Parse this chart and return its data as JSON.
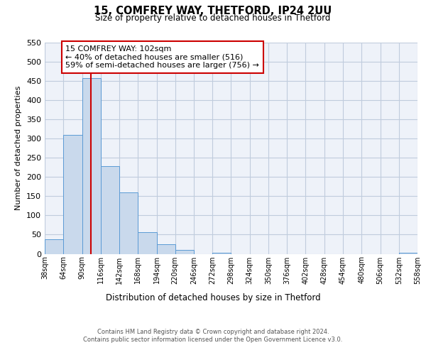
{
  "title": "15, COMFREY WAY, THETFORD, IP24 2UU",
  "subtitle": "Size of property relative to detached houses in Thetford",
  "xlabel": "Distribution of detached houses by size in Thetford",
  "ylabel": "Number of detached properties",
  "bins": [
    38,
    64,
    90,
    116,
    142,
    168,
    194,
    220,
    246,
    272,
    298,
    324,
    350,
    376,
    402,
    428,
    454,
    480,
    506,
    532,
    558
  ],
  "counts": [
    38,
    310,
    458,
    228,
    160,
    57,
    25,
    11,
    0,
    3,
    0,
    0,
    0,
    0,
    0,
    0,
    0,
    0,
    0,
    3
  ],
  "bar_color": "#c9d9ec",
  "bar_edge_color": "#5b9bd5",
  "red_line_x": 102,
  "annotation_title": "15 COMFREY WAY: 102sqm",
  "annotation_line1": "← 40% of detached houses are smaller (516)",
  "annotation_line2": "59% of semi-detached houses are larger (756) →",
  "annotation_box_color": "#ffffff",
  "annotation_box_edge": "#cc0000",
  "red_line_color": "#cc0000",
  "ylim": [
    0,
    550
  ],
  "yticks": [
    0,
    50,
    100,
    150,
    200,
    250,
    300,
    350,
    400,
    450,
    500,
    550
  ],
  "grid_color": "#c0ccdd",
  "bg_color": "#eef2f9",
  "footer_line1": "Contains HM Land Registry data © Crown copyright and database right 2024.",
  "footer_line2": "Contains public sector information licensed under the Open Government Licence v3.0.",
  "tick_labels": [
    "38sqm",
    "64sqm",
    "90sqm",
    "116sqm",
    "142sqm",
    "168sqm",
    "194sqm",
    "220sqm",
    "246sqm",
    "272sqm",
    "298sqm",
    "324sqm",
    "350sqm",
    "376sqm",
    "402sqm",
    "428sqm",
    "454sqm",
    "480sqm",
    "506sqm",
    "532sqm",
    "558sqm"
  ]
}
